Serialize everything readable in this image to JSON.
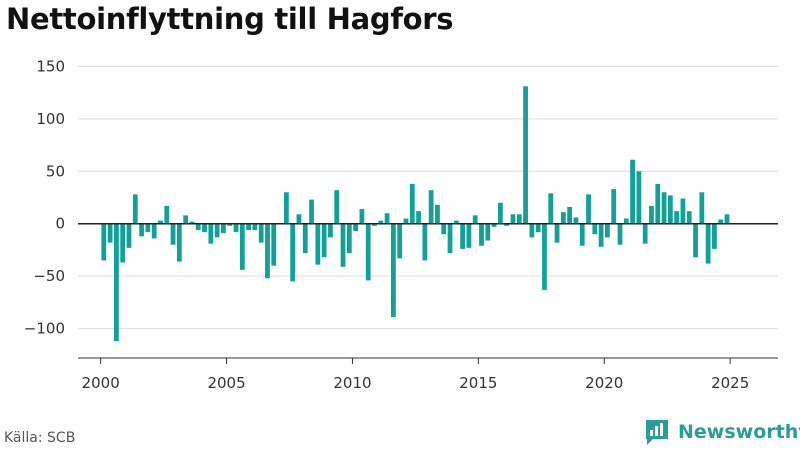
{
  "title": "Nettoinflyttning till Hagfors",
  "source": "Källa: SCB",
  "logo_text": "Newsworthy",
  "colors": {
    "bar": "#12a199",
    "zero_line": "#222222",
    "grid": "#dddddd",
    "brand": "#2a9d94"
  },
  "chart_data": {
    "type": "bar",
    "title": "Nettoinflyttning till Hagfors",
    "xlabel": "",
    "ylabel": "",
    "ylim": [
      -128,
      158
    ],
    "xlim": [
      1999.1,
      2026.9
    ],
    "yticks": [
      150,
      100,
      50,
      0,
      -50,
      -100
    ],
    "ytick_labels": [
      "150",
      "100",
      "50",
      "0",
      "−50",
      "−100"
    ],
    "xticks": [
      2000,
      2005,
      2010,
      2015,
      2020,
      2025
    ],
    "xtick_labels": [
      "2000",
      "2005",
      "2010",
      "2015",
      "2020",
      "2025"
    ],
    "grid": true,
    "bar_width_years": 0.19,
    "series": [
      {
        "x": [
          2000.125,
          2000.375,
          2000.625,
          2000.875,
          2001.125,
          2001.375,
          2001.625,
          2001.875,
          2002.125,
          2002.375,
          2002.625,
          2002.875,
          2003.125,
          2003.375,
          2003.625,
          2003.875,
          2004.125,
          2004.375,
          2004.625,
          2004.875,
          2005.125,
          2005.375,
          2005.625,
          2005.875,
          2006.125,
          2006.375,
          2006.625,
          2006.875,
          2007.125,
          2007.375,
          2007.625,
          2007.875,
          2008.125,
          2008.375,
          2008.625,
          2008.875,
          2009.125,
          2009.375,
          2009.625,
          2009.875,
          2010.125,
          2010.375,
          2010.625,
          2010.875,
          2011.125,
          2011.375,
          2011.625,
          2011.875,
          2012.125,
          2012.375,
          2012.625,
          2012.875,
          2013.125,
          2013.375,
          2013.625,
          2013.875,
          2014.125,
          2014.375,
          2014.625,
          2014.875,
          2015.125,
          2015.375,
          2015.625,
          2015.875,
          2016.125,
          2016.375,
          2016.625,
          2016.875,
          2017.125,
          2017.375,
          2017.625,
          2017.875,
          2018.125,
          2018.375,
          2018.625,
          2018.875,
          2019.125,
          2019.375,
          2019.625,
          2019.875,
          2020.125,
          2020.375,
          2020.625,
          2020.875,
          2021.125,
          2021.375,
          2021.625,
          2021.875,
          2022.125,
          2022.375,
          2022.625,
          2022.875,
          2023.125,
          2023.375,
          2023.625,
          2023.875,
          2024.125,
          2024.375,
          2024.625,
          2024.875
        ],
        "values": [
          -35,
          -18,
          -112,
          -37,
          -23,
          28,
          -12,
          -8,
          -14,
          3,
          17,
          -20,
          -36,
          8,
          2,
          -6,
          -8,
          -19,
          -13,
          -9,
          -2,
          -8,
          -44,
          -6,
          -6,
          -18,
          -52,
          -40,
          0,
          30,
          -55,
          9,
          -28,
          23,
          -39,
          -32,
          -13,
          32,
          -41,
          -28,
          -7,
          14,
          -54,
          -2,
          3,
          10,
          -89,
          -33,
          5,
          38,
          12,
          -35,
          32,
          18,
          -10,
          -28,
          3,
          -24,
          -23,
          8,
          -21,
          -16,
          -3,
          20,
          -2,
          9,
          9,
          131,
          -13,
          -8,
          -63,
          29,
          -18,
          11,
          16,
          6,
          -21,
          28,
          -10,
          -22,
          -13,
          33,
          -20,
          5,
          61,
          50,
          -19,
          17,
          38,
          30,
          27,
          12,
          24,
          12,
          -32,
          30,
          -38,
          -24,
          4,
          9
        ]
      }
    ]
  }
}
